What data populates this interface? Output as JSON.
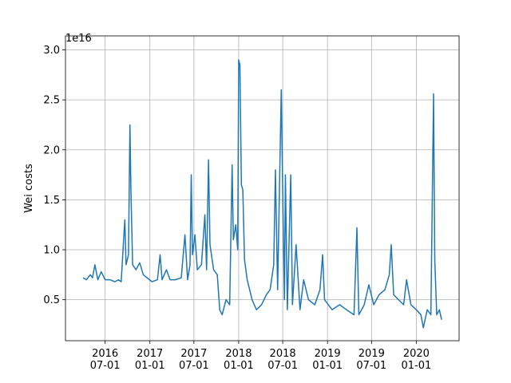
{
  "chart_data": {
    "type": "line",
    "ylabel": "Wei costs",
    "offset_label": "1e16",
    "grid": true,
    "xlim": [
      "2016-01-20",
      "2020-06-25"
    ],
    "xticks": [
      {
        "value": "2016-07-01",
        "label": "2016\n07-01"
      },
      {
        "value": "2017-01-01",
        "label": "2017\n01-01"
      },
      {
        "value": "2017-07-01",
        "label": "2017\n07-01"
      },
      {
        "value": "2018-01-01",
        "label": "2018\n01-01"
      },
      {
        "value": "2018-07-01",
        "label": "2018\n07-01"
      },
      {
        "value": "2019-01-01",
        "label": "2019\n01-01"
      },
      {
        "value": "2019-07-01",
        "label": "2019\n07-01"
      },
      {
        "value": "2020-01-01",
        "label": "2020\n01-01"
      }
    ],
    "ylim": [
      0.09,
      3.14
    ],
    "yticks": [
      0.5,
      {
        "value": 1,
        "label": "1.0"
      },
      1.5,
      {
        "value": 2,
        "label": "2.0"
      },
      2.5,
      {
        "value": 3,
        "label": "3.0"
      }
    ],
    "x": [
      "2016-04-01",
      "2016-04-15",
      "2016-05-01",
      "2016-05-10",
      "2016-05-20",
      "2016-06-01",
      "2016-06-15",
      "2016-07-01",
      "2016-07-20",
      "2016-08-10",
      "2016-08-25",
      "2016-09-05",
      "2016-09-15",
      "2016-09-20",
      "2016-09-25",
      "2016-10-05",
      "2016-10-11",
      "2016-10-15",
      "2016-10-22",
      "2016-11-05",
      "2016-11-20",
      "2016-12-05",
      "2016-12-20",
      "2017-01-10",
      "2017-02-01",
      "2017-02-12",
      "2017-02-20",
      "2017-03-10",
      "2017-03-25",
      "2017-04-15",
      "2017-05-10",
      "2017-05-25",
      "2017-06-05",
      "2017-06-15",
      "2017-06-20",
      "2017-06-25",
      "2017-07-05",
      "2017-07-15",
      "2017-08-01",
      "2017-08-15",
      "2017-08-22",
      "2017-08-30",
      "2017-09-05",
      "2017-09-20",
      "2017-10-05",
      "2017-10-15",
      "2017-10-25",
      "2017-11-10",
      "2017-11-25",
      "2017-12-05",
      "2017-12-10",
      "2017-12-20",
      "2017-12-28",
      "2018-01-01",
      "2018-01-06",
      "2018-01-12",
      "2018-01-18",
      "2018-01-25",
      "2018-02-05",
      "2018-02-25",
      "2018-03-15",
      "2018-04-05",
      "2018-04-25",
      "2018-05-10",
      "2018-05-25",
      "2018-06-01",
      "2018-06-10",
      "2018-06-25",
      "2018-07-02",
      "2018-07-08",
      "2018-07-12",
      "2018-07-20",
      "2018-08-03",
      "2018-08-10",
      "2018-08-25",
      "2018-09-10",
      "2018-09-25",
      "2018-10-15",
      "2018-11-10",
      "2018-12-01",
      "2018-12-12",
      "2018-12-20",
      "2019-01-20",
      "2019-02-20",
      "2019-03-20",
      "2019-04-20",
      "2019-05-02",
      "2019-05-10",
      "2019-06-01",
      "2019-06-20",
      "2019-07-10",
      "2019-08-01",
      "2019-08-25",
      "2019-09-12",
      "2019-09-20",
      "2019-09-30",
      "2019-10-20",
      "2019-11-10",
      "2019-11-22",
      "2019-12-10",
      "2020-01-01",
      "2020-01-20",
      "2020-01-30",
      "2020-02-15",
      "2020-03-01",
      "2020-03-12",
      "2020-03-17",
      "2020-03-25",
      "2020-04-05",
      "2020-04-14"
    ],
    "series": [
      {
        "color": "#1f77b4",
        "values": [
          0.72,
          0.7,
          0.75,
          0.72,
          0.85,
          0.7,
          0.78,
          0.7,
          0.7,
          0.68,
          0.7,
          0.68,
          1.1,
          1.3,
          0.85,
          0.95,
          2.25,
          1.6,
          0.85,
          0.8,
          0.87,
          0.75,
          0.72,
          0.68,
          0.7,
          0.95,
          0.7,
          0.8,
          0.7,
          0.7,
          0.72,
          1.15,
          0.7,
          0.85,
          1.75,
          0.95,
          1.15,
          0.8,
          0.85,
          1.35,
          0.8,
          1.9,
          1.05,
          0.8,
          0.75,
          0.4,
          0.35,
          0.5,
          0.45,
          1.85,
          1.1,
          1.25,
          1.0,
          2.9,
          2.85,
          1.65,
          1.6,
          0.9,
          0.7,
          0.5,
          0.4,
          0.45,
          0.55,
          0.6,
          0.85,
          1.8,
          0.6,
          2.6,
          1.4,
          0.5,
          1.75,
          0.4,
          1.75,
          0.45,
          1.05,
          0.4,
          0.7,
          0.5,
          0.45,
          0.6,
          0.95,
          0.5,
          0.4,
          0.45,
          0.4,
          0.35,
          1.22,
          0.35,
          0.45,
          0.65,
          0.45,
          0.55,
          0.6,
          0.75,
          1.05,
          0.55,
          0.5,
          0.45,
          0.7,
          0.45,
          0.4,
          0.35,
          0.22,
          0.4,
          0.35,
          2.56,
          0.9,
          0.35,
          0.4,
          0.3
        ]
      }
    ]
  }
}
